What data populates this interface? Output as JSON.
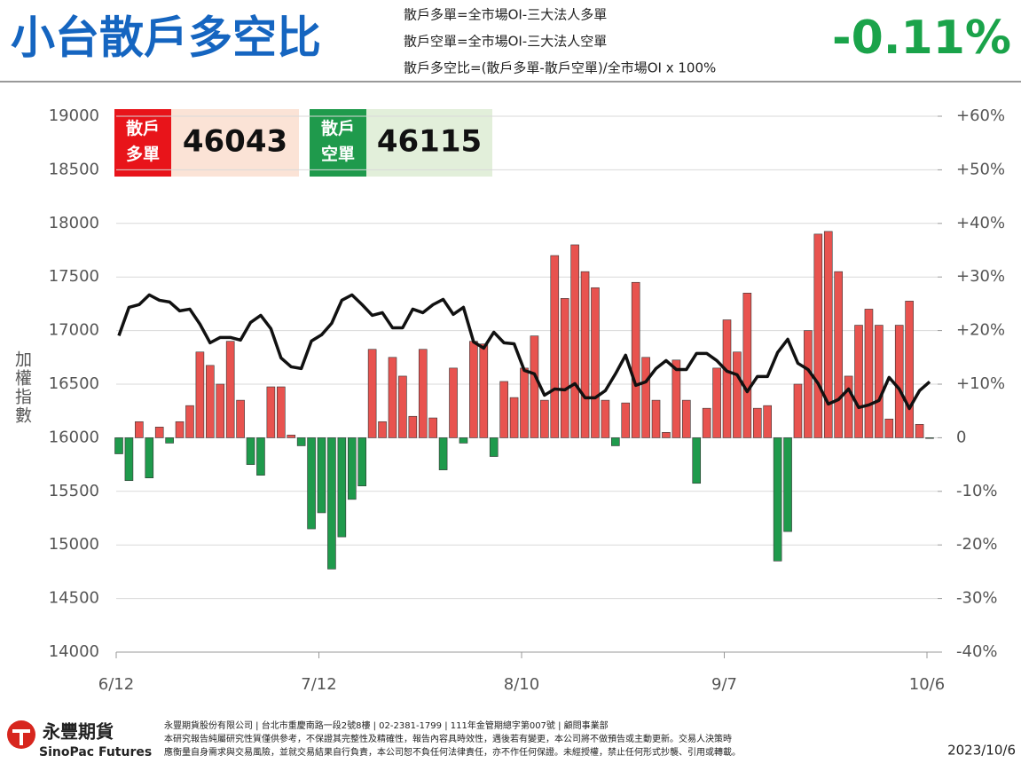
{
  "header": {
    "title": "小台散戶多空比",
    "notes": [
      "散戶多單=全市場OI-三大法人多單",
      "散戶空單=全市場OI-三大法人空單",
      "散戶多空比=(散戶多單-散戶空單)/全市場OI x 100%"
    ],
    "ratio": "-0.11%"
  },
  "boxes": [
    {
      "label": "散戶多單",
      "value": 46043
    },
    {
      "label": "散戶空單",
      "value": 46115
    }
  ],
  "chart_data": {
    "type": "combo",
    "y_label": "加權指數",
    "categories": [
      "6/12",
      null,
      null,
      null,
      null,
      null,
      null,
      null,
      null,
      null,
      null,
      null,
      null,
      null,
      null,
      null,
      null,
      null,
      null,
      null,
      "7/12",
      null,
      null,
      null,
      null,
      null,
      null,
      null,
      null,
      null,
      null,
      null,
      null,
      null,
      null,
      null,
      null,
      null,
      null,
      null,
      "8/10",
      null,
      null,
      null,
      null,
      null,
      null,
      null,
      null,
      null,
      null,
      null,
      null,
      null,
      null,
      null,
      null,
      null,
      null,
      null,
      "9/7",
      null,
      null,
      null,
      null,
      null,
      null,
      null,
      null,
      null,
      null,
      null,
      null,
      null,
      null,
      null,
      null,
      null,
      null,
      null,
      "10/6"
    ],
    "series": [
      {
        "type": "bar",
        "axis": "y2",
        "color": "#e8534f",
        "negative_color": "#1f9a4c",
        "values": [
          -3,
          -8,
          3,
          -7.5,
          2,
          -1,
          3,
          6,
          16,
          13.5,
          10,
          18,
          7,
          -5,
          -7,
          9.5,
          9.5,
          0.5,
          -1.5,
          -17,
          -14,
          -24.5,
          -18.5,
          -11.5,
          -9,
          16.5,
          3,
          15,
          11.5,
          4,
          16.5,
          3.7,
          -6,
          13,
          -1,
          18,
          17.5,
          -3.5,
          10.5,
          7.5,
          13,
          19,
          7,
          34,
          26,
          36,
          31,
          28,
          7,
          -1.5,
          6.5,
          29,
          15,
          7,
          1,
          14.5,
          7,
          -8.5,
          5.5,
          13,
          22,
          16,
          27,
          5.5,
          6,
          -23,
          -17.5,
          10,
          20,
          38,
          38.5,
          31,
          11.5,
          21,
          24,
          21,
          3.5,
          21,
          25.5,
          2.5,
          -0.11
        ]
      },
      {
        "type": "line",
        "axis": "y",
        "color": "#111111",
        "values": [
          16952,
          17217,
          17242,
          17333,
          17283,
          17267,
          17184,
          17200,
          17060,
          16886,
          16936,
          16936,
          16911,
          17076,
          17142,
          17018,
          16745,
          16662,
          16646,
          16903,
          16960,
          17068,
          17283,
          17333,
          17242,
          17142,
          17167,
          17026,
          17026,
          17200,
          17167,
          17242,
          17291,
          17151,
          17217,
          16894,
          16836,
          16985,
          16886,
          16877,
          16629,
          16596,
          16397,
          16455,
          16447,
          16505,
          16373,
          16373,
          16439,
          16596,
          16770,
          16489,
          16522,
          16646,
          16720,
          16637,
          16637,
          16787,
          16787,
          16720,
          16621,
          16588,
          16430,
          16571,
          16571,
          16795,
          16919,
          16695,
          16637,
          16505,
          16315,
          16356,
          16455,
          16282,
          16306,
          16348,
          16563,
          16455,
          16273,
          16439,
          16522
        ]
      }
    ],
    "ylim": [
      14000,
      19000
    ],
    "yticks": [
      14000,
      14500,
      15000,
      15500,
      16000,
      16500,
      17000,
      17500,
      18000,
      18500,
      19000
    ],
    "y2lim": [
      -40,
      60
    ],
    "y2ticks": [
      {
        "value": -40,
        "label": "-40%"
      },
      {
        "value": -30,
        "label": "-30%"
      },
      {
        "value": -20,
        "label": "-20%"
      },
      {
        "value": -10,
        "label": "-10%"
      },
      0,
      {
        "value": 10,
        "label": "+10%"
      },
      {
        "value": 20,
        "label": "+20%"
      },
      {
        "value": 30,
        "label": "+30%"
      },
      {
        "value": 40,
        "label": "+40%"
      },
      {
        "value": 50,
        "label": "+50%"
      },
      {
        "value": 60,
        "label": "+60%"
      }
    ],
    "grid": true
  },
  "footer": {
    "brand": "永豐期貨",
    "brand_en": "SinoPac Futures",
    "lines": [
      "永豐期貨股份有限公司 | 台北市重慶南路一段2號8樓 | 02-2381-1799 | 111年金管期總字第007號 | 顧問事業部",
      "本研究報告純屬研究性質僅供參考，不保證其完整性及精確性，報告內容具時效性，遇後若有變更，本公司將不做預告或主動更新。交易人決策時",
      "應衡量自身需求與交易風險，並就交易結果自行負責，本公司恕不負任何法律責任，亦不作任何保證。未經授權，禁止任何形式抄襲、引用或轉載。"
    ],
    "date": "2023/10/6"
  }
}
